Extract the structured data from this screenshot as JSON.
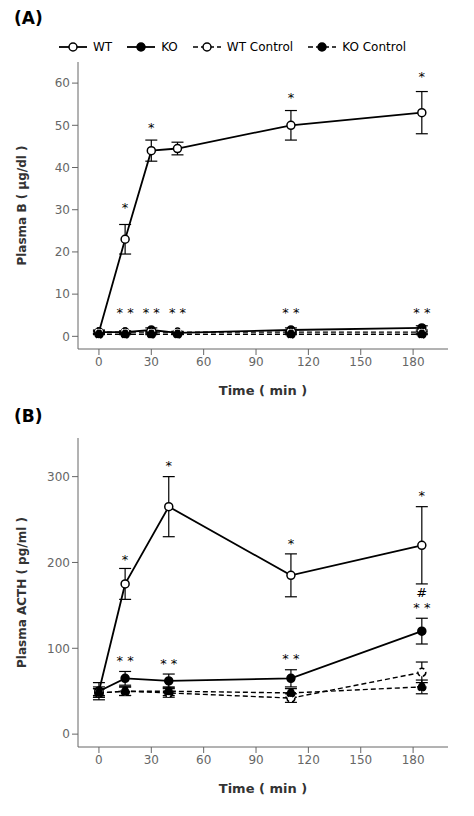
{
  "chart_data": [
    {
      "type": "line",
      "title": "(A)",
      "x_label": "Time ( min )",
      "y_label": "Plasma B ( μg/dl )",
      "x": [
        0,
        15,
        30,
        45,
        110,
        185
      ],
      "xlim": [
        -12,
        200
      ],
      "xticks": [
        0,
        30,
        60,
        90,
        120,
        150,
        180
      ],
      "ylim": [
        -3,
        65
      ],
      "yticks": [
        0,
        10,
        20,
        30,
        40,
        50,
        60
      ],
      "grid": false,
      "legend": "top",
      "series": [
        {
          "name": "WT",
          "color": "#000000",
          "marker": "open_circle",
          "line_style": "solid",
          "values": [
            1.0,
            23.0,
            44.0,
            44.5,
            50.0,
            53.0
          ],
          "error": [
            0.5,
            3.5,
            2.5,
            1.5,
            3.5,
            5.0
          ]
        },
        {
          "name": "KO",
          "color": "#000000",
          "marker": "filled_circle",
          "line_style": "solid",
          "values": [
            1.0,
            1.0,
            1.5,
            0.8,
            1.5,
            2.0
          ],
          "error": [
            0.3,
            0.3,
            0.5,
            0.3,
            0.5,
            0.5
          ]
        },
        {
          "name": "WT Control",
          "color": "#000000",
          "marker": "open_circle",
          "line_style": "dashed",
          "values": [
            1.0,
            1.0,
            1.0,
            1.0,
            1.0,
            1.0
          ],
          "error": [
            0.2,
            0.2,
            0.2,
            0.2,
            0.2,
            0.2
          ]
        },
        {
          "name": "KO Control",
          "color": "#000000",
          "marker": "filled_circle",
          "line_style": "dashed",
          "values": [
            0.5,
            0.5,
            0.5,
            0.5,
            0.5,
            0.5
          ],
          "error": [
            0.1,
            0.1,
            0.1,
            0.1,
            0.1,
            0.1
          ]
        }
      ],
      "annotations": [
        {
          "x": 15,
          "y": 29,
          "text": "*"
        },
        {
          "x": 30,
          "y": 48,
          "text": "*"
        },
        {
          "x": 110,
          "y": 55,
          "text": "*"
        },
        {
          "x": 185,
          "y": 60,
          "text": "*"
        },
        {
          "x": 15,
          "y": 4,
          "text": "* *"
        },
        {
          "x": 30,
          "y": 4,
          "text": "* *"
        },
        {
          "x": 45,
          "y": 4,
          "text": "* *"
        },
        {
          "x": 110,
          "y": 4,
          "text": "* *"
        },
        {
          "x": 185,
          "y": 4,
          "text": "* *"
        }
      ]
    },
    {
      "type": "line",
      "title": "(B)",
      "x_label": "Time ( min )",
      "y_label": "Plasma ACTH ( pg/ml )",
      "x": [
        0,
        15,
        40,
        110,
        185
      ],
      "xlim": [
        -12,
        200
      ],
      "xticks": [
        0,
        30,
        60,
        90,
        120,
        150,
        180
      ],
      "ylim": [
        -15,
        345
      ],
      "yticks": [
        0,
        100,
        200,
        300
      ],
      "grid": false,
      "series": [
        {
          "color": "#000000",
          "marker": "open_circle",
          "line_style": "solid",
          "values": [
            50.0,
            175.0,
            265.0,
            185.0,
            220.0
          ],
          "error": [
            10.0,
            18.0,
            35.0,
            25.0,
            45.0
          ]
        },
        {
          "color": "#000000",
          "marker": "filled_circle",
          "line_style": "solid",
          "values": [
            50.0,
            65.0,
            62.0,
            65.0,
            120.0
          ],
          "error": [
            5.0,
            8.0,
            8.0,
            10.0,
            15.0
          ]
        },
        {
          "color": "#000000",
          "marker": "open_circle",
          "line_style": "dashed",
          "values": [
            48.0,
            50.0,
            48.0,
            42.0,
            72.0
          ],
          "error": [
            5.0,
            5.0,
            5.0,
            5.0,
            12.0
          ]
        },
        {
          "color": "#000000",
          "marker": "filled_circle",
          "line_style": "dashed",
          "values": [
            48.0,
            50.0,
            50.0,
            48.0,
            55.0
          ],
          "error": [
            5.0,
            5.0,
            5.0,
            5.0,
            8.0
          ]
        }
      ],
      "annotations": [
        {
          "x": 15,
          "y": 196,
          "text": "*"
        },
        {
          "x": 40,
          "y": 305,
          "text": "*"
        },
        {
          "x": 110,
          "y": 215,
          "text": "*"
        },
        {
          "x": 185,
          "y": 270,
          "text": "*"
        },
        {
          "x": 15,
          "y": 78,
          "text": "* *"
        },
        {
          "x": 40,
          "y": 75,
          "text": "* *"
        },
        {
          "x": 110,
          "y": 80,
          "text": "* *"
        },
        {
          "x": 185,
          "y": 140,
          "text": "* *"
        },
        {
          "x": 185,
          "y": 158,
          "text": "#"
        }
      ]
    }
  ]
}
